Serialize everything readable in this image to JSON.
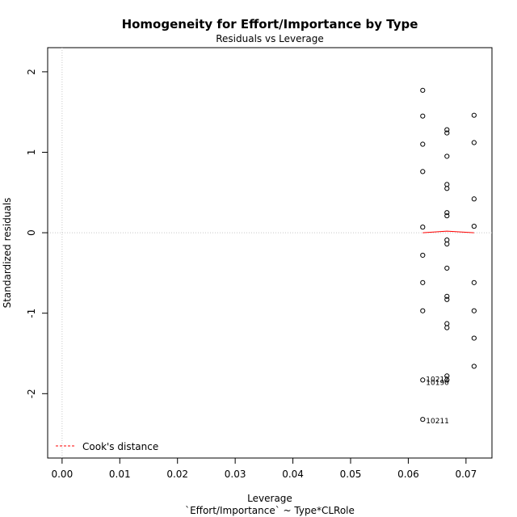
{
  "chart_data": {
    "type": "scatter",
    "title": "Homogeneity for Effort/Importance by Type",
    "subtitle": "Residuals vs Leverage",
    "xlabel": "Leverage",
    "xlabel2": "`Effort/Importance` ~ Type*CLRole",
    "ylabel": "Standardized residuals",
    "xlim": [
      -0.0025,
      0.0745
    ],
    "ylim": [
      -2.8,
      2.3
    ],
    "x_ticks": [
      "0.00",
      "0.01",
      "0.02",
      "0.03",
      "0.04",
      "0.05",
      "0.06",
      "0.07"
    ],
    "x_tick_values": [
      0.0,
      0.01,
      0.02,
      0.03,
      0.04,
      0.05,
      0.06,
      0.07
    ],
    "y_ticks": [
      "-2",
      "-1",
      "0",
      "1",
      "2"
    ],
    "y_tick_values": [
      -2,
      -1,
      0,
      1,
      2
    ],
    "grid": false,
    "reference_lines": {
      "x": 0,
      "y": 0,
      "style": "dotted",
      "color": "#c8c8c8"
    },
    "points": [
      {
        "x": 0.0625,
        "y": 1.77
      },
      {
        "x": 0.0625,
        "y": 1.45
      },
      {
        "x": 0.0625,
        "y": 1.1
      },
      {
        "x": 0.0625,
        "y": 0.76
      },
      {
        "x": 0.0625,
        "y": 0.07
      },
      {
        "x": 0.0625,
        "y": -0.28
      },
      {
        "x": 0.0625,
        "y": -0.62
      },
      {
        "x": 0.0625,
        "y": -0.97
      },
      {
        "x": 0.0625,
        "y": -1.83
      },
      {
        "x": 0.0625,
        "y": -2.32
      },
      {
        "x": 0.0667,
        "y": 1.28
      },
      {
        "x": 0.0667,
        "y": 1.24
      },
      {
        "x": 0.0667,
        "y": 0.95
      },
      {
        "x": 0.0667,
        "y": 0.6
      },
      {
        "x": 0.0667,
        "y": 0.55
      },
      {
        "x": 0.0667,
        "y": 0.25
      },
      {
        "x": 0.0667,
        "y": 0.21
      },
      {
        "x": 0.0667,
        "y": -0.09
      },
      {
        "x": 0.0667,
        "y": -0.14
      },
      {
        "x": 0.0667,
        "y": -0.44
      },
      {
        "x": 0.0667,
        "y": -0.79
      },
      {
        "x": 0.0667,
        "y": -0.83
      },
      {
        "x": 0.0667,
        "y": -1.13
      },
      {
        "x": 0.0667,
        "y": -1.18
      },
      {
        "x": 0.0667,
        "y": -1.78
      },
      {
        "x": 0.0667,
        "y": -1.83
      },
      {
        "x": 0.0714,
        "y": 1.46
      },
      {
        "x": 0.0714,
        "y": 1.12
      },
      {
        "x": 0.0714,
        "y": 0.42
      },
      {
        "x": 0.0714,
        "y": 0.08
      },
      {
        "x": 0.0714,
        "y": -0.62
      },
      {
        "x": 0.0714,
        "y": -0.97
      },
      {
        "x": 0.0714,
        "y": -1.31
      },
      {
        "x": 0.0714,
        "y": -1.66
      }
    ],
    "point_labels": [
      {
        "text": "10212",
        "x": 0.0625,
        "y": -1.82
      },
      {
        "text": "10190",
        "x": 0.0625,
        "y": -1.86
      },
      {
        "text": "10211",
        "x": 0.0625,
        "y": -2.34
      }
    ],
    "smooth_line": {
      "color": "#ff0000",
      "x": [
        0.0625,
        0.0667,
        0.0714
      ],
      "y": [
        0.0,
        0.02,
        0.0
      ]
    },
    "legend": {
      "placement": "bottom-left",
      "entries": [
        {
          "label": "Cook's distance",
          "color": "#ff0000",
          "style": "dashed"
        }
      ]
    }
  }
}
